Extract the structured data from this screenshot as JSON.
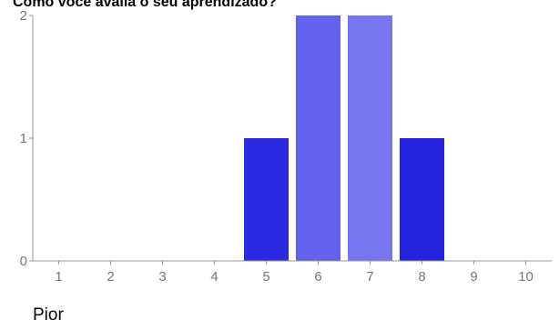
{
  "chart_data": {
    "type": "bar",
    "title": "Como você avalia o seu aprendizado?",
    "categories": [
      "1",
      "2",
      "3",
      "4",
      "5",
      "6",
      "7",
      "8",
      "9",
      "10"
    ],
    "values": [
      0,
      0,
      0,
      0,
      1,
      2,
      2,
      1,
      0,
      0
    ],
    "y_ticks": [
      "0",
      "1",
      "2"
    ],
    "ylim": [
      0,
      2
    ],
    "xlabel": "",
    "ylabel": "",
    "grid": false,
    "bar_colors": [
      "#2a2ae0",
      "#2a2ae0",
      "#2a2ae0",
      "#2a2ae0",
      "#2a2ae0",
      "#6262ee",
      "#7676f0",
      "#2424dd",
      "#2a2ae0",
      "#2a2ae0"
    ],
    "axis_color": "#999999"
  },
  "scale_low_label": "Pior"
}
